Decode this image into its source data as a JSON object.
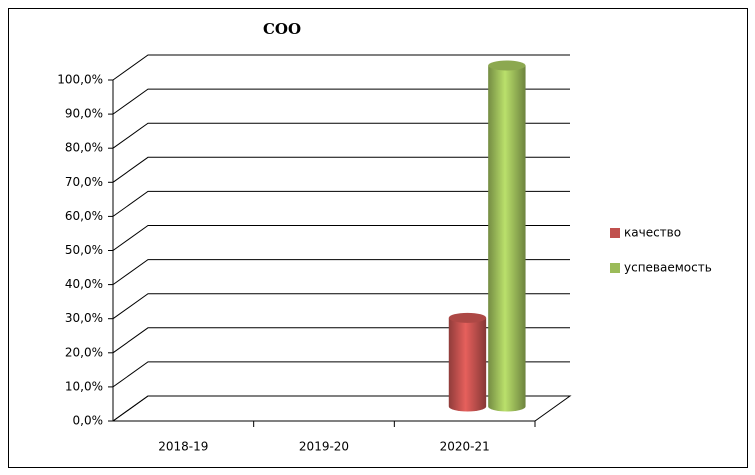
{
  "chart_data": {
    "type": "bar3d",
    "title": "СОО",
    "categories": [
      "2018-19",
      "2019-20",
      "2020-21"
    ],
    "series": [
      {
        "name": "качество",
        "color": "#c0504d",
        "values": [
          null,
          null,
          26
        ]
      },
      {
        "name": "успеваемость",
        "color": "#9bbb59",
        "values": [
          null,
          null,
          100
        ]
      }
    ],
    "ylim": [
      0,
      100
    ],
    "yticks": [
      {
        "value": 0,
        "label": "0,0%"
      },
      {
        "value": 10,
        "label": "10,0%"
      },
      {
        "value": 20,
        "label": "20,0%"
      },
      {
        "value": 30,
        "label": "30,0%"
      },
      {
        "value": 40,
        "label": "40,0%"
      },
      {
        "value": 50,
        "label": "50,0%"
      },
      {
        "value": 60,
        "label": "60,0%"
      },
      {
        "value": 70,
        "label": "70,0%"
      },
      {
        "value": 80,
        "label": "80,0%"
      },
      {
        "value": 90,
        "label": "90,0%"
      },
      {
        "value": 100,
        "label": "100,0%"
      }
    ],
    "grid": true,
    "legend": "right"
  }
}
